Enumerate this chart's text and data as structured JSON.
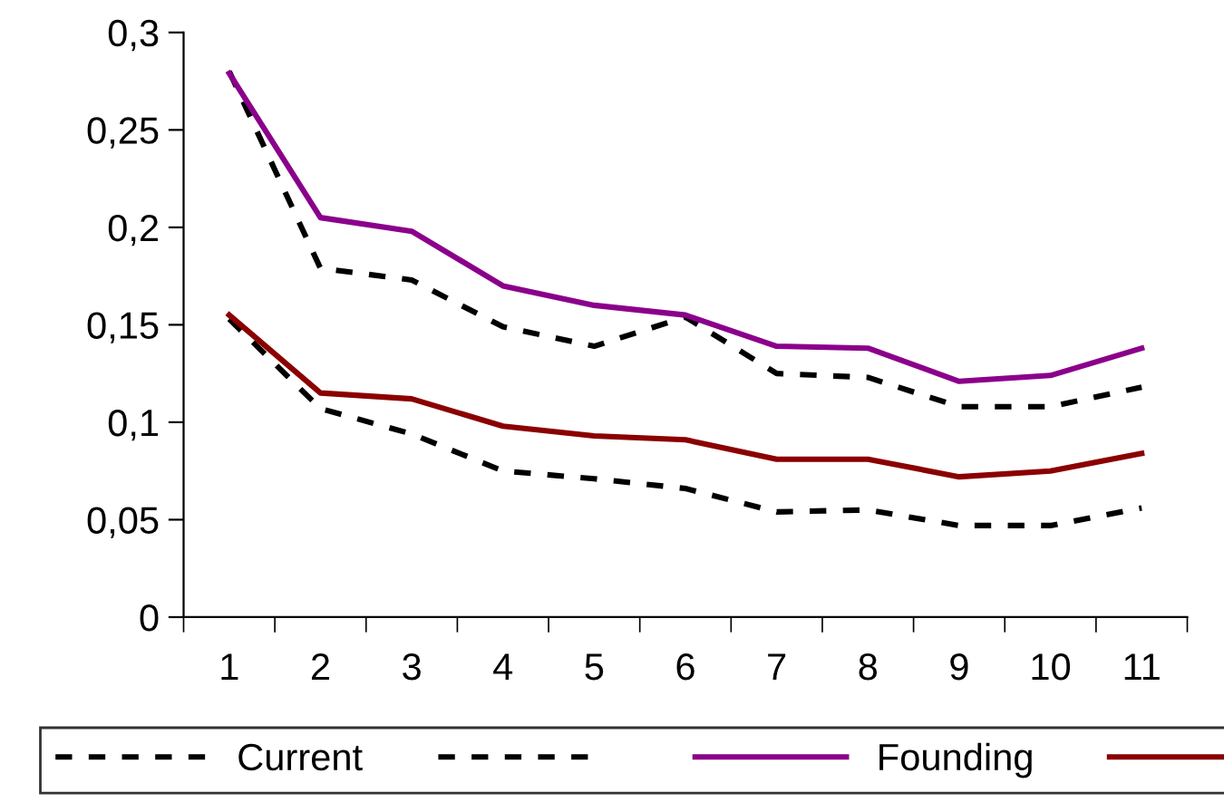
{
  "chart_data": {
    "type": "line",
    "categories": [
      "1",
      "2",
      "3",
      "4",
      "5",
      "6",
      "7",
      "8",
      "9",
      "10",
      "11"
    ],
    "series": [
      {
        "name": "Current",
        "color": "#000000",
        "line_style": "dashed",
        "values": [
          0.28,
          0.179,
          0.173,
          0.149,
          0.139,
          0.154,
          0.125,
          0.123,
          0.108,
          0.108,
          0.118
        ]
      },
      {
        "color": "#000000",
        "line_style": "dashed",
        "values": [
          0.153,
          0.107,
          0.094,
          0.075,
          0.071,
          0.066,
          0.054,
          0.055,
          0.047,
          0.047,
          0.056
        ]
      },
      {
        "name": "Founding",
        "color": "#8b008b",
        "line_style": "solid",
        "values": [
          0.279,
          0.205,
          0.198,
          0.17,
          0.16,
          0.155,
          0.139,
          0.138,
          0.121,
          0.124,
          0.138
        ]
      },
      {
        "color": "#8b0000",
        "line_style": "solid",
        "values": [
          0.155,
          0.115,
          0.112,
          0.098,
          0.093,
          0.091,
          0.081,
          0.081,
          0.072,
          0.075,
          0.084
        ]
      }
    ],
    "ylim": [
      0,
      0.3
    ],
    "yticks": [
      {
        "value": 0,
        "label": "0"
      },
      {
        "value": 0.05,
        "label": "0,05"
      },
      {
        "value": 0.1,
        "label": "0,1"
      },
      {
        "value": 0.15,
        "label": "0,15"
      },
      {
        "value": 0.2,
        "label": "0,2"
      },
      {
        "value": 0.25,
        "label": "0,25"
      },
      {
        "value": 0.3,
        "label": "0,3"
      }
    ],
    "grid": false,
    "legend": "bottom",
    "marker": "none"
  }
}
